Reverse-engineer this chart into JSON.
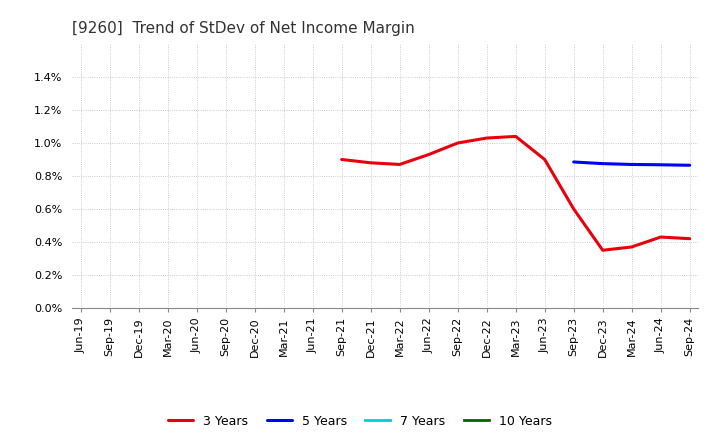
{
  "title": "[9260]  Trend of StDev of Net Income Margin",
  "x_labels": [
    "Jun-19",
    "Sep-19",
    "Dec-19",
    "Mar-20",
    "Jun-20",
    "Sep-20",
    "Dec-20",
    "Mar-21",
    "Jun-21",
    "Sep-21",
    "Dec-21",
    "Mar-22",
    "Jun-22",
    "Sep-22",
    "Dec-22",
    "Mar-23",
    "Jun-23",
    "Sep-23",
    "Dec-23",
    "Mar-24",
    "Jun-24",
    "Sep-24"
  ],
  "ylim": [
    0.0,
    0.016
  ],
  "yticks": [
    0.0,
    0.002,
    0.004,
    0.006,
    0.008,
    0.01,
    0.012,
    0.014
  ],
  "series_3y": {
    "x": [
      "Sep-21",
      "Dec-21",
      "Mar-22",
      "Jun-22",
      "Sep-22",
      "Dec-22",
      "Mar-23",
      "Jun-23",
      "Sep-23",
      "Dec-23",
      "Mar-24",
      "Jun-24",
      "Sep-24"
    ],
    "y": [
      0.009,
      0.0088,
      0.0087,
      0.0093,
      0.01,
      0.0103,
      0.0104,
      0.009,
      0.006,
      0.0035,
      0.0037,
      0.0043,
      0.0042
    ],
    "color": "#e8000d",
    "linewidth": 2.2,
    "label": "3 Years"
  },
  "series_5y": {
    "x": [
      "Sep-23",
      "Dec-23",
      "Mar-24",
      "Jun-24",
      "Sep-24"
    ],
    "y": [
      0.00885,
      0.00875,
      0.0087,
      0.00868,
      0.00865
    ],
    "color": "#0000ff",
    "linewidth": 2.2,
    "label": "5 Years"
  },
  "series_7y": {
    "x": [],
    "y": [],
    "color": "#00ccdd",
    "linewidth": 2.0,
    "label": "7 Years"
  },
  "series_10y": {
    "x": [],
    "y": [],
    "color": "#006600",
    "linewidth": 2.0,
    "label": "10 Years"
  },
  "background_color": "#ffffff",
  "plot_bg_color": "#ffffff",
  "grid_color": "#bbbbbb",
  "title_fontsize": 11,
  "tick_fontsize": 8,
  "legend_fontsize": 9
}
